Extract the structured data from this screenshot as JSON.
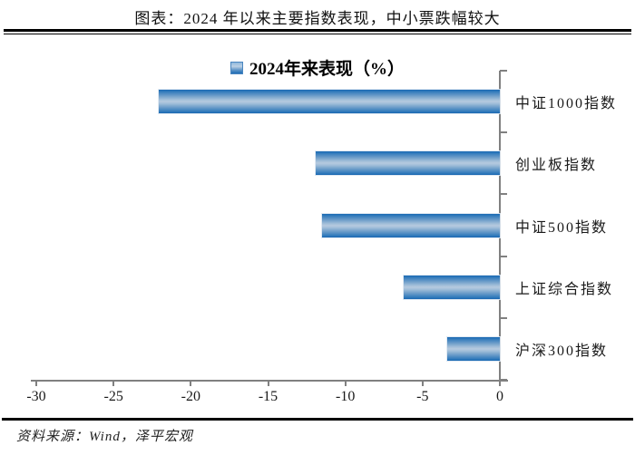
{
  "header": {
    "title": "图表：2024 年以来主要指数表现，中小票跌幅较大"
  },
  "footer": {
    "source": "资料来源：Wind，泽平宏观"
  },
  "chart_data": {
    "type": "bar",
    "orientation": "horizontal",
    "title": "",
    "legend": {
      "label": "2024年来表现（%）",
      "position": "top-center",
      "marker_color": "#2e75b6"
    },
    "categories": [
      "中证1000指数",
      "创业板指数",
      "中证500指数",
      "上证综合指数",
      "沪深300指数"
    ],
    "values": [
      -22.1,
      -11.9,
      -11.5,
      -6.2,
      -3.4
    ],
    "xlim": [
      -30,
      0
    ],
    "x_ticks": [
      -30,
      -25,
      -20,
      -15,
      -10,
      -5,
      0
    ],
    "grid": false,
    "bar_gradient": [
      "#1a68b2",
      "#b6cadf",
      "#1a68b2"
    ],
    "axis_color": "#808080"
  }
}
